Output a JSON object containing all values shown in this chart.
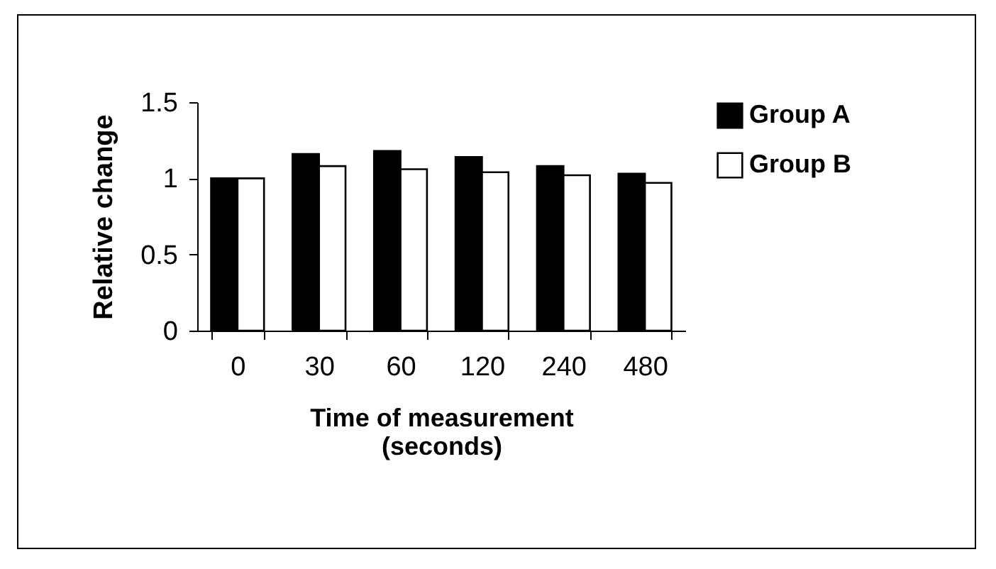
{
  "chart_data": {
    "type": "bar",
    "xlabel": "Time of measurement\n(seconds)",
    "ylabel": "Relative change",
    "categories": [
      "0",
      "30",
      "60",
      "120",
      "240",
      "480"
    ],
    "series": [
      {
        "name": "Group A",
        "color": "#000000",
        "values": [
          1.0,
          1.16,
          1.18,
          1.14,
          1.08,
          1.03
        ]
      },
      {
        "name": "Group B",
        "color": "#ffffff",
        "values": [
          1.0,
          1.08,
          1.06,
          1.04,
          1.02,
          0.97
        ]
      }
    ],
    "ylim": [
      0,
      1.5
    ],
    "yticks": [
      0,
      0.5,
      1,
      1.5
    ],
    "grid": false,
    "legend": "right"
  }
}
